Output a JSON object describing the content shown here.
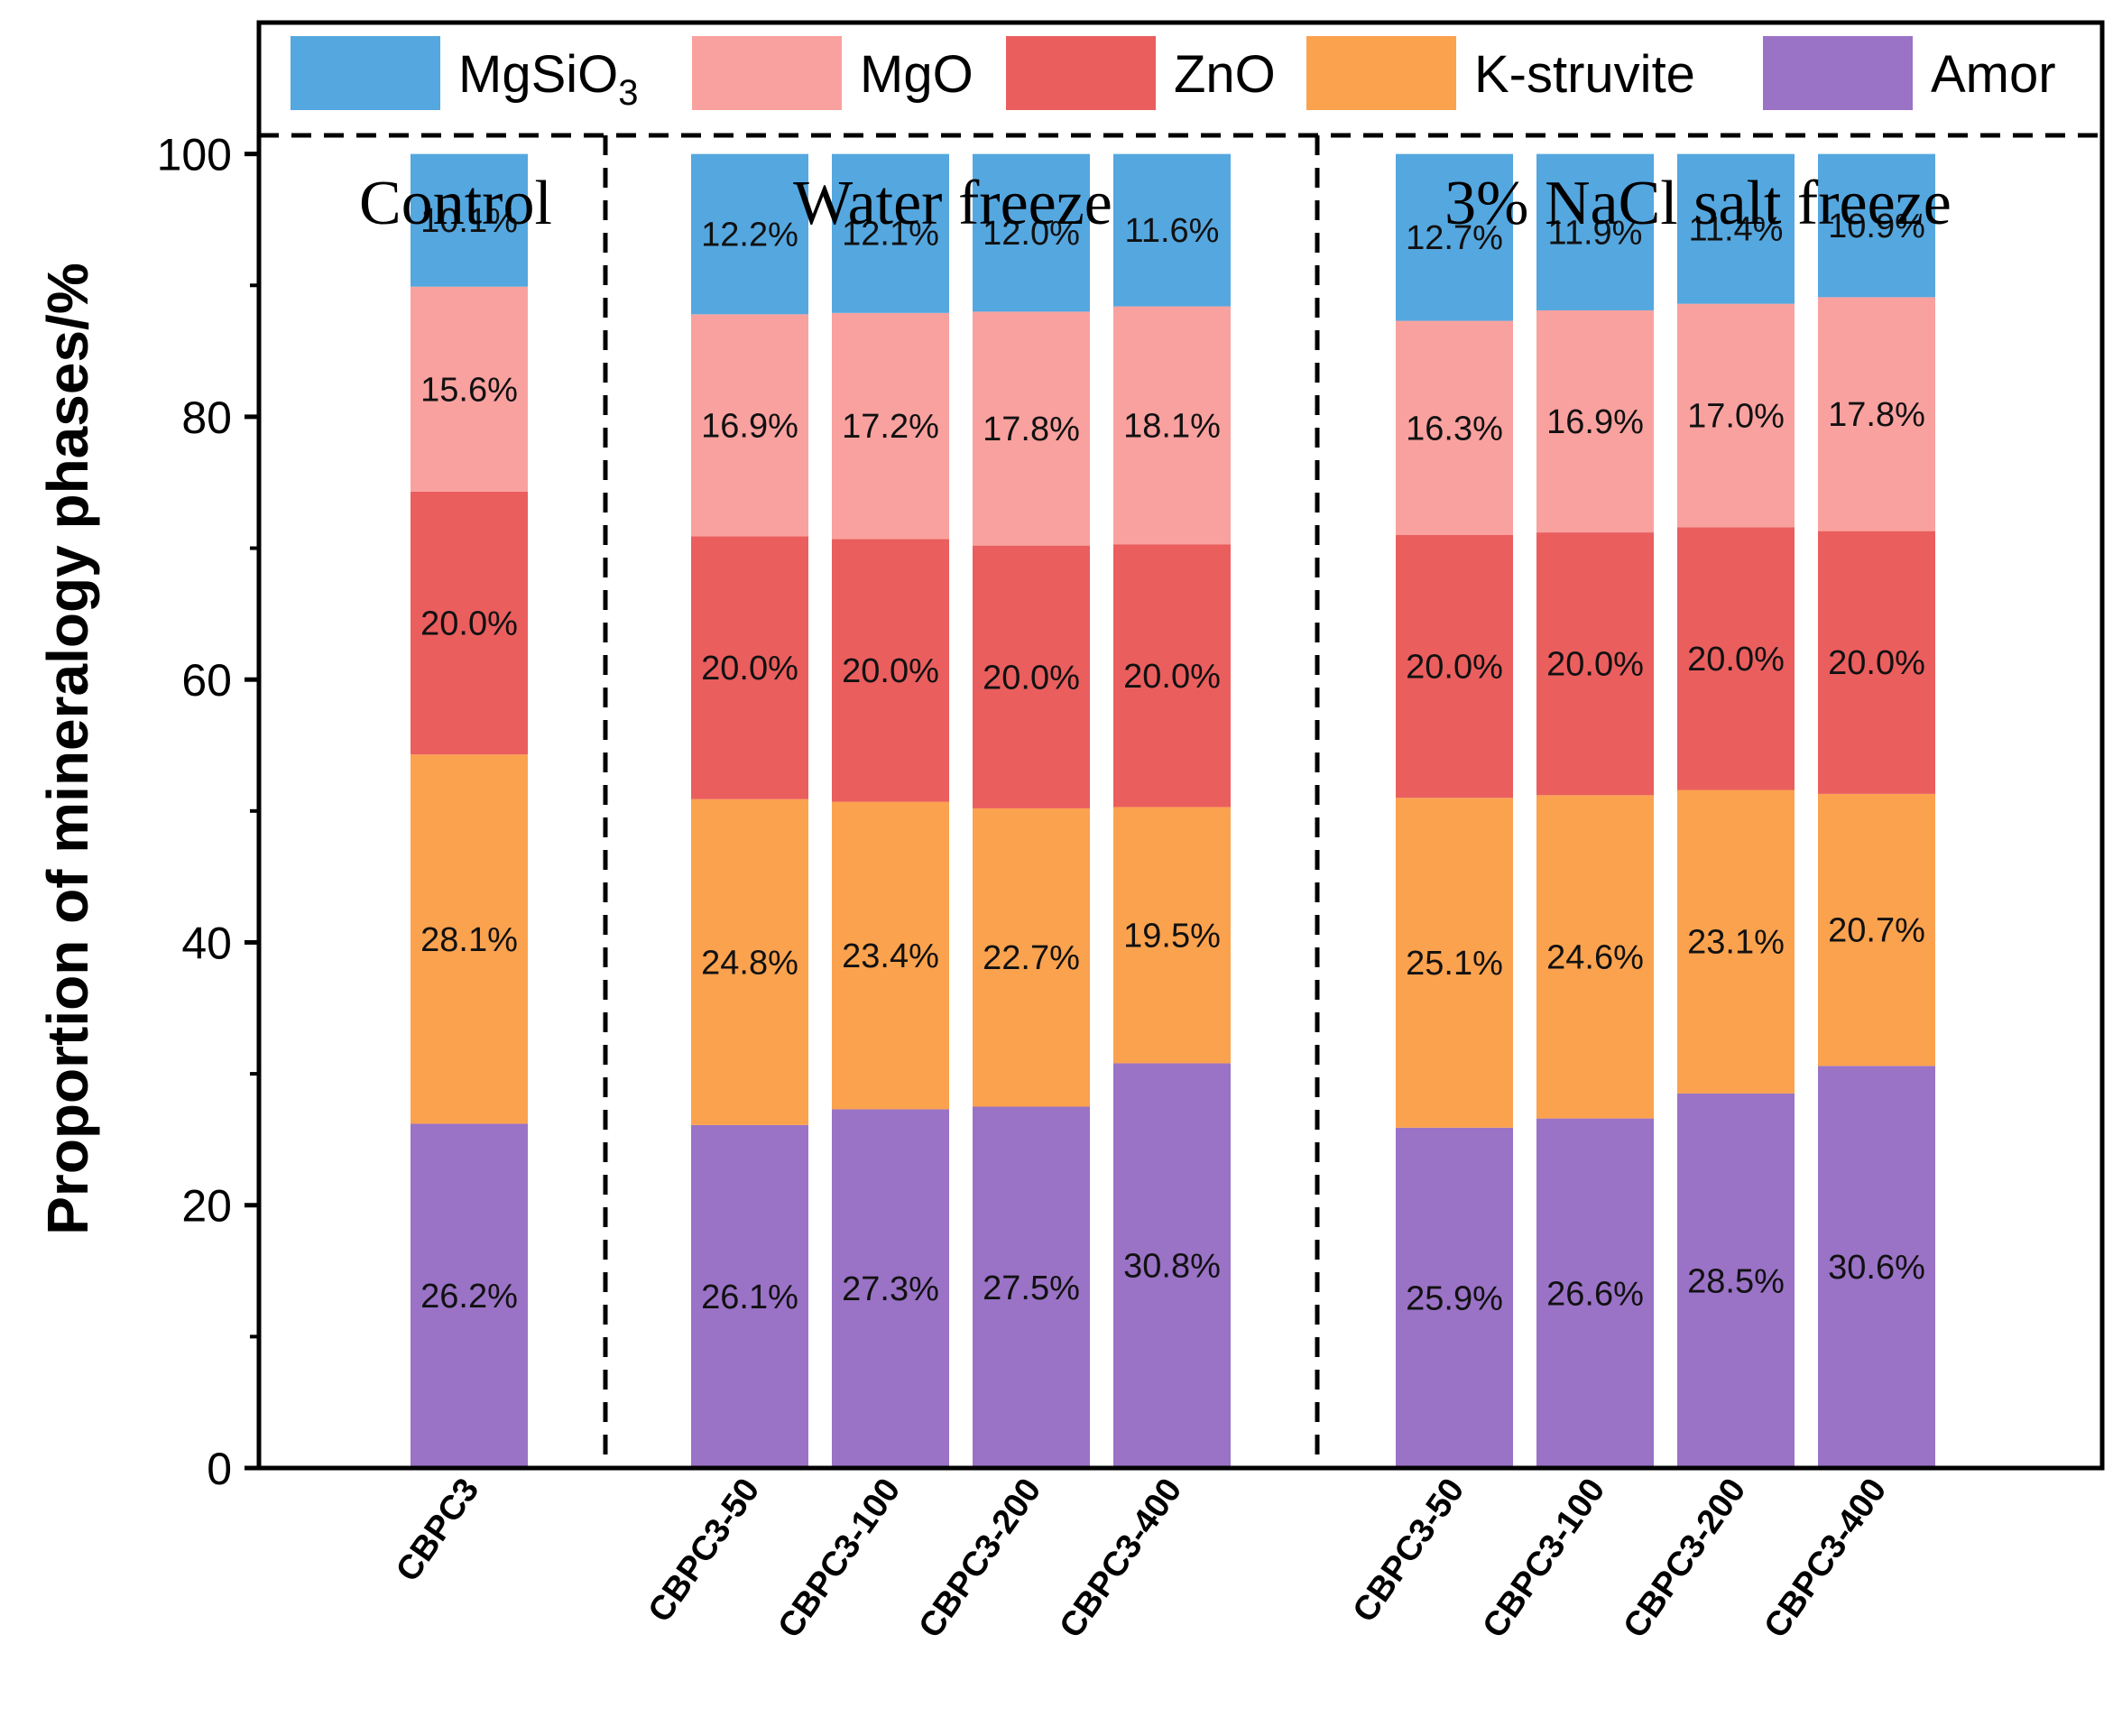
{
  "chart_data": {
    "type": "bar",
    "stacked": true,
    "title": "",
    "xlabel": "",
    "ylabel": "Proportion of mineralogy phases/%",
    "ylim": [
      0,
      110
    ],
    "yticks": [
      0,
      20,
      40,
      60,
      80,
      100
    ],
    "groups": [
      {
        "label": "Control",
        "categories": [
          "CBPC3"
        ]
      },
      {
        "label": "Water freeze",
        "categories": [
          "CBPC3-50",
          "CBPC3-100",
          "CBPC3-200",
          "CBPC3-400"
        ]
      },
      {
        "label": "3% NaCl salt freeze",
        "categories": [
          "CBPC3-50",
          "CBPC3-100",
          "CBPC3-200",
          "CBPC3-400"
        ]
      }
    ],
    "series": [
      {
        "name": "Amor",
        "color": "#9a72c6",
        "values": [
          26.2,
          26.1,
          27.3,
          27.5,
          30.8,
          25.9,
          26.6,
          28.5,
          30.6
        ]
      },
      {
        "name": "K-struvite",
        "color": "#fba24f",
        "values": [
          28.1,
          24.8,
          23.4,
          22.7,
          19.5,
          25.1,
          24.6,
          23.1,
          20.7
        ]
      },
      {
        "name": "ZnO",
        "color": "#ea5e5e",
        "values": [
          20.0,
          20.0,
          20.0,
          20.0,
          20.0,
          20.0,
          20.0,
          20.0,
          20.0
        ]
      },
      {
        "name": "MgO",
        "color": "#f9a19f",
        "values": [
          15.6,
          16.9,
          17.2,
          17.8,
          18.1,
          16.3,
          16.9,
          17.0,
          17.8
        ]
      },
      {
        "name": "MgSiO3",
        "color": "#55a7df",
        "values": [
          10.1,
          12.2,
          12.1,
          12.0,
          11.6,
          12.7,
          11.9,
          11.4,
          10.9
        ]
      }
    ],
    "legend_order": [
      "MgSiO3",
      "MgO",
      "ZnO",
      "K-struvite",
      "Amor"
    ],
    "legend": {
      "MgSiO3": {
        "text": "MgSiO",
        "sub": "3"
      },
      "MgO": {
        "text": "MgO"
      },
      "ZnO": {
        "text": "ZnO"
      },
      "K-struvite": {
        "text": "K-struvite"
      },
      "Amor": {
        "text": "Amor"
      }
    },
    "legend_position": "top",
    "grid": false
  }
}
